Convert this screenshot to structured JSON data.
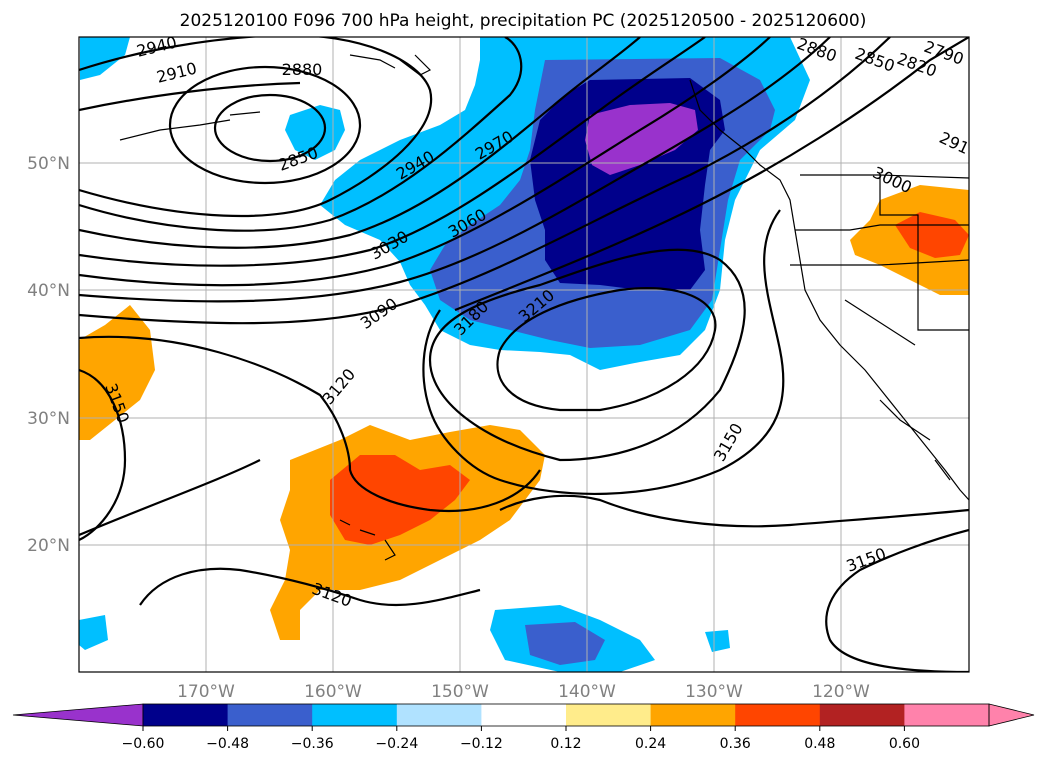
{
  "title": "2025120100 F096 700 hPa height, precipitation PC (2025120500 - 2025120600)",
  "lon_labels": [
    "170°W",
    "160°W",
    "150°W",
    "140°W",
    "130°W",
    "120°W"
  ],
  "lat_labels": [
    "50°N",
    "40°N",
    "30°N",
    "20°N"
  ],
  "contour_labels": [
    {
      "id": "c2940a",
      "text": "2940"
    },
    {
      "id": "c2910",
      "text": "2910"
    },
    {
      "id": "c2880a",
      "text": "2880"
    },
    {
      "id": "c2850a",
      "text": "2850"
    },
    {
      "id": "c2940b",
      "text": "2940"
    },
    {
      "id": "c2970",
      "text": "2970"
    },
    {
      "id": "c3060",
      "text": "3060"
    },
    {
      "id": "c3030",
      "text": "3030"
    },
    {
      "id": "c3090",
      "text": "3090"
    },
    {
      "id": "c3180",
      "text": "3180"
    },
    {
      "id": "c3210",
      "text": "3210"
    },
    {
      "id": "c3120a",
      "text": "3120"
    },
    {
      "id": "c3150a",
      "text": "3150"
    },
    {
      "id": "c3150b",
      "text": "3150"
    },
    {
      "id": "c3150c",
      "text": "3150"
    },
    {
      "id": "c3120b",
      "text": "3120"
    },
    {
      "id": "c2880b",
      "text": "2880"
    },
    {
      "id": "c2850b",
      "text": "2850"
    },
    {
      "id": "c2820",
      "text": "2820"
    },
    {
      "id": "c2790",
      "text": "2790"
    },
    {
      "id": "c3000",
      "text": "3000"
    },
    {
      "id": "c291x",
      "text": "291"
    }
  ],
  "colorbar": {
    "ticks": [
      "−0.60",
      "−0.48",
      "−0.36",
      "−0.24",
      "−0.12",
      "0.12",
      "0.24",
      "0.36",
      "0.48",
      "0.60"
    ],
    "colors": [
      "#9932cc",
      "#00008b",
      "#3a5fcd",
      "#00bfff",
      "#b0e2ff",
      "#ffffff",
      "#ffec8b",
      "#ffa500",
      "#ff4500",
      "#b22222",
      "#ff82ab",
      "#ff82ab"
    ]
  },
  "colors": {
    "neg_light": "#00bfff",
    "neg_mid": "#3a5fcd",
    "neg_dark": "#00008b",
    "neg_max": "#9932cc",
    "pos_mid": "#ffa500",
    "pos_high": "#ff4500"
  }
}
